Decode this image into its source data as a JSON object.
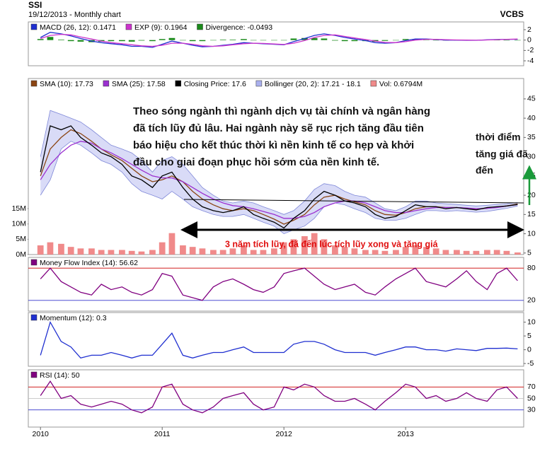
{
  "header": {
    "ticker": "SSI",
    "subtitle": "19/12/2013 - Monthly chart",
    "source": "VCBS"
  },
  "chart_data": [
    {
      "type": "line",
      "ylim": [
        -4.95,
        3.5
      ],
      "yticks": [
        2,
        0,
        -2,
        -4
      ],
      "series": [
        {
          "name": "MACD (26, 12): 0.1471",
          "color": "#1f2fd0",
          "style": "line",
          "values": [
            0.5,
            1.5,
            1.2,
            0.8,
            0.3,
            -0.2,
            -0.5,
            -0.7,
            -0.9,
            -1.2,
            -1.2,
            -1.4,
            -0.8,
            -0.2,
            -0.6,
            -1.0,
            -1.3,
            -1.2,
            -1.0,
            -0.8,
            -0.5,
            -0.6,
            -0.7,
            -0.8,
            -0.9,
            -0.3,
            0.3,
            0.9,
            1.2,
            0.9,
            0.5,
            0.2,
            -0.1,
            -0.5,
            -0.6,
            -0.5,
            -0.1,
            0.2,
            0.2,
            0.1,
            0,
            0,
            -0.05,
            -0.05,
            0.05,
            0.1,
            0.15,
            0.1471
          ]
        },
        {
          "name": "EXP (9): 0.1964",
          "color": "#cc33cc",
          "style": "line",
          "values": [
            0.3,
            0.9,
            1.1,
            1.0,
            0.6,
            0.2,
            -0.2,
            -0.5,
            -0.7,
            -0.9,
            -1.1,
            -1.2,
            -1.0,
            -0.6,
            -0.6,
            -0.8,
            -1.1,
            -1.2,
            -1.1,
            -0.9,
            -0.7,
            -0.6,
            -0.65,
            -0.75,
            -0.85,
            -0.6,
            -0.1,
            0.5,
            0.9,
            1.0,
            0.7,
            0.4,
            0.1,
            -0.2,
            -0.45,
            -0.5,
            -0.3,
            0,
            0.15,
            0.15,
            0.08,
            0.03,
            0,
            -0.03,
            0.02,
            0.08,
            0.15,
            0.1964
          ]
        },
        {
          "name": "Divergence: -0.0493",
          "color": "#1a8a1a",
          "style": "bar",
          "values": [
            0.2,
            0.6,
            0.1,
            -0.2,
            -0.3,
            -0.4,
            -0.3,
            -0.2,
            -0.2,
            -0.3,
            -0.1,
            -0.2,
            0.2,
            0.4,
            0,
            -0.2,
            -0.2,
            0,
            0.1,
            0.1,
            0.2,
            0,
            -0.05,
            -0.05,
            -0.05,
            0.3,
            0.4,
            0.4,
            0.3,
            -0.1,
            -0.2,
            -0.2,
            -0.2,
            -0.3,
            -0.15,
            0,
            0.2,
            0.2,
            0.05,
            -0.05,
            -0.08,
            -0.03,
            -0.05,
            -0.02,
            0.03,
            0.02,
            0,
            -0.0493
          ]
        }
      ]
    },
    {
      "type": "line",
      "ylim": [
        4.6,
        50.3
      ],
      "yticks": [
        5,
        10,
        15,
        20,
        25,
        30,
        35,
        40,
        45
      ],
      "y2lim": [
        0,
        57.5
      ],
      "y2ticks": [
        {
          "value": 0,
          "label": "0M"
        },
        {
          "value": 5,
          "label": "5M"
        },
        {
          "value": 10,
          "label": "10M"
        },
        {
          "value": 15,
          "label": "15M"
        }
      ],
      "note": [
        "Theo sóng ngành thì ngành dịch vụ tài chính và ngân hàng",
        "đã tích lũy đủ lâu. Hai ngành này sẽ rục rịch tăng đầu tiên",
        "báo hiệu cho kết thúc thời kì nền kinh tế co hẹp và khởi",
        "đầu cho giai đoạn phục hồi sớm của nền kinh tế."
      ],
      "note_right": [
        "thời điểm",
        "tăng giá đã",
        "đến"
      ],
      "range_label": "3 năm tích lũy, đã đến lúc tích lũy xong và tăng giá",
      "series": [
        {
          "name": "SMA (10): 17.73",
          "color": "#8b4513",
          "style": "line",
          "values": [
            25,
            32,
            35,
            37,
            36,
            34,
            32,
            30.5,
            29,
            27,
            25,
            23.5,
            24,
            25,
            23.5,
            21,
            19,
            17.5,
            16.5,
            16,
            16.5,
            16,
            15,
            13.8,
            12.5,
            13.5,
            15,
            17.5,
            19.5,
            20,
            19,
            18.3,
            17.5,
            16,
            15,
            14.8,
            15.5,
            16.5,
            17,
            17,
            16.8,
            16.8,
            16.6,
            16.4,
            16.6,
            16.9,
            17.2,
            17.73
          ]
        },
        {
          "name": "SMA (25): 17.58",
          "color": "#9b30d0",
          "style": "line",
          "values": [
            24,
            28,
            31,
            33,
            34,
            33.5,
            32,
            31,
            29.5,
            28,
            26.5,
            25,
            24.5,
            24.5,
            23.5,
            22,
            20.5,
            19,
            18,
            17.3,
            17,
            16.5,
            15.8,
            15,
            14,
            14,
            14.5,
            15.5,
            17,
            18,
            18.5,
            18.5,
            18,
            17,
            16,
            15.5,
            15.5,
            16,
            16.5,
            16.8,
            16.8,
            16.8,
            16.7,
            16.5,
            16.6,
            16.8,
            17.2,
            17.58
          ]
        },
        {
          "name": "Closing Price: 17.6",
          "color": "#000000",
          "style": "line",
          "values": [
            26,
            38,
            37,
            38,
            35,
            33,
            31,
            30,
            28,
            25,
            24,
            22,
            25,
            26,
            22,
            19,
            17,
            16,
            15.5,
            16,
            17,
            15,
            14,
            13,
            11.5,
            14,
            16,
            19,
            21,
            20,
            18.5,
            18,
            17,
            15,
            14,
            14.5,
            16,
            17.5,
            17,
            17,
            16.5,
            16.8,
            16.5,
            16.2,
            16.8,
            17,
            17.2,
            17.6
          ]
        },
        {
          "name": "Bollinger (20, 2): 17.21 - 18.1",
          "color": "#aab0ee",
          "style": "band",
          "upper": [
            30,
            42,
            41,
            40,
            39,
            37,
            35,
            33,
            32,
            31,
            29,
            26,
            29,
            30,
            28,
            25,
            22,
            20,
            18.5,
            18,
            18.5,
            18,
            17,
            16,
            15,
            16,
            18.5,
            21.5,
            23,
            22.5,
            21,
            20,
            19.5,
            18,
            16.5,
            16,
            17,
            18.5,
            18.5,
            18,
            17.8,
            17.6,
            17.4,
            17.2,
            17.4,
            17.6,
            17.8,
            18.1
          ],
          "lower": [
            20,
            24,
            32,
            34,
            33,
            31,
            29,
            28,
            26,
            23,
            21,
            20,
            19,
            21,
            19,
            17,
            16,
            15,
            14.5,
            14.5,
            15,
            14,
            13,
            12,
            10,
            11,
            12,
            14,
            17,
            18,
            17.5,
            16.5,
            15.5,
            14,
            13.5,
            13.5,
            14,
            15,
            16,
            16,
            15.8,
            16,
            15.8,
            15.6,
            15.8,
            16.2,
            16.6,
            17.21
          ]
        },
        {
          "name": "Vol: 0.6794M",
          "color": "#f08a8a",
          "style": "bar",
          "axis": "y2",
          "values": [
            3,
            4,
            3.5,
            2.5,
            2,
            2,
            1.5,
            1.5,
            1.5,
            1.2,
            1,
            1.5,
            4,
            7,
            3,
            2.5,
            2,
            1.5,
            1.5,
            2,
            3,
            1.5,
            1.5,
            2,
            4,
            5,
            6,
            7,
            5,
            3,
            2.5,
            2,
            1.5,
            1.5,
            1.2,
            1.5,
            2.5,
            3,
            2.5,
            2,
            1.5,
            1.5,
            1.2,
            1.2,
            1.5,
            1.5,
            1.2,
            0.6794
          ]
        }
      ]
    },
    {
      "type": "line",
      "ylim": [
        0,
        100
      ],
      "yticks": [
        20,
        80
      ],
      "tick_colors": [
        "#3333cc",
        "#cc0000"
      ],
      "series": [
        {
          "name": "Money Flow Index (14): 56.62",
          "color": "#800080",
          "style": "line",
          "values": [
            60,
            80,
            55,
            45,
            35,
            30,
            50,
            40,
            45,
            35,
            30,
            40,
            70,
            65,
            30,
            25,
            20,
            45,
            55,
            60,
            50,
            40,
            35,
            45,
            70,
            75,
            80,
            65,
            50,
            40,
            45,
            50,
            35,
            30,
            45,
            60,
            70,
            80,
            55,
            50,
            45,
            60,
            75,
            55,
            40,
            70,
            80,
            56.62
          ]
        }
      ]
    },
    {
      "type": "line",
      "ylim": [
        -6,
        13.5
      ],
      "yticks": [
        10,
        5,
        0,
        -5
      ],
      "series": [
        {
          "name": "Momentum (12): 0.3",
          "color": "#1f2fd0",
          "style": "line",
          "values": [
            -2,
            10,
            3,
            1,
            -3,
            -2,
            -2,
            -1,
            -2,
            -3,
            -2,
            -2,
            2,
            6,
            -2,
            -3,
            -2,
            -1,
            -1,
            0,
            1,
            -1,
            -1,
            -1,
            -1,
            2,
            3,
            3,
            2,
            0,
            -1,
            -1,
            -1,
            -2,
            -1,
            0,
            1,
            1,
            0,
            0,
            -0.5,
            0.3,
            0,
            -0.3,
            0.5,
            0.5,
            0.6,
            0.3
          ]
        }
      ]
    },
    {
      "type": "line",
      "ylim": [
        0,
        100
      ],
      "yticks": [
        30,
        50,
        70
      ],
      "tick_colors": [
        "#3333cc",
        "#bbbbbb",
        "#cc0000"
      ],
      "xlim": [
        2009.9,
        2013.97
      ],
      "xticks": [
        2010,
        2011,
        2012,
        2013
      ],
      "x": [
        2010,
        2010.08,
        2010.17,
        2010.25,
        2010.33,
        2010.42,
        2010.5,
        2010.58,
        2010.67,
        2010.75,
        2010.83,
        2010.92,
        2011,
        2011.08,
        2011.17,
        2011.25,
        2011.33,
        2011.42,
        2011.5,
        2011.58,
        2011.67,
        2011.75,
        2011.83,
        2011.92,
        2012,
        2012.08,
        2012.17,
        2012.25,
        2012.33,
        2012.42,
        2012.5,
        2012.58,
        2012.67,
        2012.75,
        2012.83,
        2012.92,
        2013,
        2013.08,
        2013.17,
        2013.25,
        2013.33,
        2013.42,
        2013.5,
        2013.58,
        2013.67,
        2013.75,
        2013.83,
        2013.92
      ],
      "series": [
        {
          "name": "RSI (14): 50",
          "color": "#800080",
          "style": "line",
          "values": [
            55,
            80,
            50,
            55,
            40,
            35,
            40,
            45,
            40,
            30,
            25,
            35,
            70,
            75,
            40,
            30,
            25,
            35,
            50,
            55,
            60,
            40,
            30,
            35,
            70,
            65,
            75,
            70,
            55,
            45,
            45,
            50,
            40,
            30,
            45,
            60,
            75,
            70,
            50,
            55,
            45,
            50,
            60,
            50,
            45,
            65,
            70,
            50
          ]
        }
      ]
    }
  ]
}
